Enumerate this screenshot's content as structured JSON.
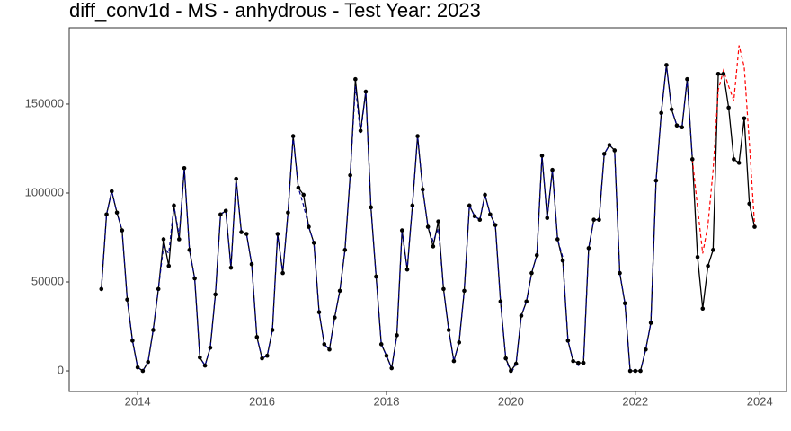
{
  "chart_data": {
    "type": "line",
    "title": "diff_conv1d - MS - anhydrous - Test Year: 2023",
    "x": [
      2013.417,
      2013.5,
      2013.583,
      2013.667,
      2013.75,
      2013.833,
      2013.917,
      2014.0,
      2014.083,
      2014.167,
      2014.25,
      2014.333,
      2014.417,
      2014.5,
      2014.583,
      2014.667,
      2014.75,
      2014.833,
      2014.917,
      2015.0,
      2015.083,
      2015.167,
      2015.25,
      2015.333,
      2015.417,
      2015.5,
      2015.583,
      2015.667,
      2015.75,
      2015.833,
      2015.917,
      2016.0,
      2016.083,
      2016.167,
      2016.25,
      2016.333,
      2016.417,
      2016.5,
      2016.583,
      2016.667,
      2016.75,
      2016.833,
      2016.917,
      2017.0,
      2017.083,
      2017.167,
      2017.25,
      2017.333,
      2017.417,
      2017.5,
      2017.583,
      2017.667,
      2017.75,
      2017.833,
      2017.917,
      2018.0,
      2018.083,
      2018.167,
      2018.25,
      2018.333,
      2018.417,
      2018.5,
      2018.583,
      2018.667,
      2018.75,
      2018.833,
      2018.917,
      2019.0,
      2019.083,
      2019.167,
      2019.25,
      2019.333,
      2019.417,
      2019.5,
      2019.583,
      2019.667,
      2019.75,
      2019.833,
      2019.917,
      2020.0,
      2020.083,
      2020.167,
      2020.25,
      2020.333,
      2020.417,
      2020.5,
      2020.583,
      2020.667,
      2020.75,
      2020.833,
      2020.917,
      2021.0,
      2021.083,
      2021.167,
      2021.25,
      2021.333,
      2021.417,
      2021.5,
      2021.583,
      2021.667,
      2021.75,
      2021.833,
      2021.917,
      2022.0,
      2022.083,
      2022.167,
      2022.25,
      2022.333,
      2022.417,
      2022.5,
      2022.583,
      2022.667,
      2022.75,
      2022.833,
      2022.917,
      2023.0,
      2023.083,
      2023.167,
      2023.25,
      2023.333,
      2023.417,
      2023.5,
      2023.583,
      2023.667,
      2023.75,
      2023.833,
      2023.917
    ],
    "series": [
      {
        "color": "#000000",
        "dashed": false,
        "points": true,
        "values": [
          46000,
          88000,
          101000,
          89000,
          79000,
          40000,
          17000,
          2000,
          0,
          5000,
          23000,
          46000,
          74000,
          59000,
          93000,
          74000,
          114000,
          68000,
          52000,
          7500,
          3000,
          13000,
          43000,
          88000,
          90000,
          58000,
          108000,
          78000,
          77000,
          60000,
          19000,
          7000,
          8500,
          23000,
          77000,
          55000,
          89000,
          132000,
          103000,
          99000,
          81000,
          72000,
          33000,
          15000,
          12000,
          30000,
          45000,
          68000,
          110000,
          164000,
          135000,
          157000,
          92000,
          53000,
          15000,
          8500,
          1500,
          20000,
          79000,
          57000,
          93000,
          132000,
          102000,
          81000,
          70000,
          84000,
          46000,
          23000,
          5500,
          16000,
          45000,
          93000,
          87000,
          85000,
          99000,
          88000,
          82000,
          39000,
          7000,
          0,
          4000,
          31000,
          39000,
          55000,
          65000,
          121000,
          86000,
          113000,
          74000,
          62000,
          17000,
          5500,
          4500,
          4500,
          69000,
          85000,
          85000,
          122000,
          127000,
          124000,
          55000,
          38000,
          0,
          0,
          0,
          12000,
          27000,
          107000,
          145000,
          172000,
          147000,
          138000,
          137000,
          164000,
          119000,
          64000,
          35000,
          59000,
          68000,
          167000,
          167000,
          148000,
          119000,
          117000,
          142000,
          94000,
          81000
        ]
      },
      {
        "color": "#00008b",
        "dashed": true,
        "points": false,
        "values": [
          46000,
          88000,
          101000,
          89000,
          79000,
          40000,
          17000,
          2000,
          0,
          5000,
          23000,
          46000,
          70000,
          66000,
          93000,
          76000,
          114000,
          68000,
          52000,
          7500,
          3000,
          13000,
          43000,
          88000,
          90000,
          58000,
          108000,
          78000,
          77000,
          60000,
          19000,
          7000,
          8500,
          23000,
          77000,
          55000,
          89000,
          132000,
          103000,
          93000,
          81000,
          72000,
          33000,
          15000,
          12000,
          30000,
          45000,
          68000,
          110000,
          160000,
          133000,
          157000,
          92000,
          53000,
          15000,
          8500,
          1500,
          20000,
          79000,
          57000,
          93000,
          132000,
          102000,
          81000,
          73000,
          80000,
          46000,
          23000,
          5500,
          16000,
          45000,
          93000,
          87000,
          85000,
          99000,
          88000,
          82000,
          39000,
          7000,
          -1500,
          4000,
          31000,
          39000,
          55000,
          65000,
          121000,
          86000,
          113000,
          74000,
          64000,
          17000,
          5500,
          3000,
          4500,
          69000,
          85000,
          85000,
          122000,
          127000,
          124000,
          55000,
          38000,
          0,
          0,
          0,
          12000,
          27000,
          107000,
          145000,
          172000,
          147000,
          138000,
          137000,
          164000,
          119000,
          null,
          null,
          null,
          null,
          null,
          null,
          null,
          null,
          null,
          null,
          null,
          null
        ]
      },
      {
        "color": "#ff0000",
        "dashed": true,
        "points": false,
        "values": [
          null,
          null,
          null,
          null,
          null,
          null,
          null,
          null,
          null,
          null,
          null,
          null,
          null,
          null,
          null,
          null,
          null,
          null,
          null,
          null,
          null,
          null,
          null,
          null,
          null,
          null,
          null,
          null,
          null,
          null,
          null,
          null,
          null,
          null,
          null,
          null,
          null,
          null,
          null,
          null,
          null,
          null,
          null,
          null,
          null,
          null,
          null,
          null,
          null,
          null,
          null,
          null,
          null,
          null,
          null,
          null,
          null,
          null,
          null,
          null,
          null,
          null,
          null,
          null,
          null,
          null,
          null,
          null,
          null,
          null,
          null,
          null,
          null,
          null,
          null,
          null,
          null,
          null,
          null,
          null,
          null,
          null,
          null,
          null,
          null,
          null,
          null,
          null,
          null,
          null,
          null,
          null,
          null,
          null,
          null,
          null,
          null,
          null,
          null,
          null,
          null,
          null,
          null,
          null,
          null,
          null,
          null,
          null,
          null,
          null,
          null,
          null,
          null,
          null,
          119000,
          92000,
          66000,
          82000,
          113000,
          158000,
          169000,
          160000,
          152000,
          183000,
          171000,
          128000,
          82000
        ]
      }
    ],
    "xlim": [
      2012.9,
      2024.43
    ],
    "xticks": [
      2014,
      2016,
      2018,
      2020,
      2022,
      2024
    ],
    "ylim": [
      -11600,
      192900
    ],
    "yticks": [
      0,
      50000,
      100000,
      150000
    ]
  }
}
